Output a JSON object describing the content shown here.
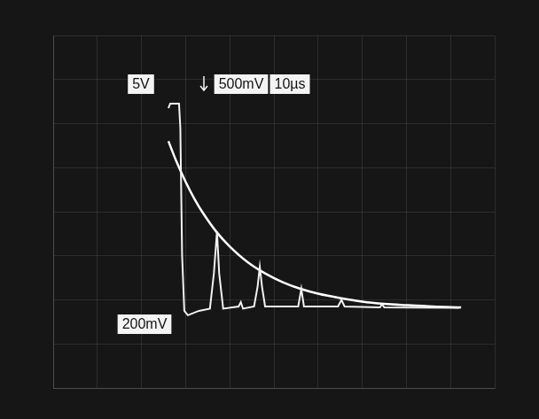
{
  "chart_data": {
    "type": "line",
    "annotations": [
      "5V",
      "500mV",
      "10µs",
      "200mV"
    ],
    "series": [
      {
        "color": "#f2f2f2",
        "line_style": "solid",
        "x": [
          2.61,
          2.65,
          2.85,
          2.88,
          2.92,
          2.97,
          3.05,
          3.3,
          3.55,
          3.64,
          3.71,
          3.76,
          3.85,
          4.2,
          4.25,
          4.3,
          4.55,
          4.63,
          4.68,
          4.73,
          4.8,
          5.55,
          5.62,
          5.68,
          6.45,
          6.53,
          6.6,
          7.4,
          7.45,
          7.5,
          9.2
        ],
        "values": [
          6.35,
          6.45,
          6.45,
          5.9,
          3.0,
          1.75,
          1.65,
          1.75,
          1.8,
          2.6,
          3.55,
          2.6,
          1.8,
          1.85,
          1.95,
          1.8,
          1.85,
          2.3,
          2.75,
          2.3,
          1.85,
          1.85,
          2.25,
          1.85,
          1.85,
          2.0,
          1.85,
          1.83,
          1.9,
          1.83,
          1.82
        ]
      },
      {
        "color": "#ffffff",
        "line_style": "solid",
        "x": [
          2.61,
          2.8,
          3.0,
          3.2,
          3.4,
          3.7,
          4.0,
          4.4,
          4.8,
          5.2,
          5.6,
          6.0,
          6.5,
          7.0,
          7.5,
          8.0,
          8.6,
          9.24
        ],
        "values": [
          5.6,
          5.12,
          4.68,
          4.29,
          3.96,
          3.54,
          3.21,
          2.86,
          2.6,
          2.4,
          2.25,
          2.14,
          2.04,
          1.96,
          1.91,
          1.88,
          1.85,
          1.83
        ]
      }
    ],
    "xlim": [
      0,
      10
    ],
    "xticks": [
      0,
      1,
      2,
      3,
      4,
      5,
      6,
      7,
      8,
      9,
      10
    ],
    "ylim": [
      0,
      8
    ],
    "yticks": [
      0,
      1,
      2,
      3,
      4,
      5,
      6,
      7,
      8
    ],
    "grid": true,
    "tick_labels": false
  }
}
